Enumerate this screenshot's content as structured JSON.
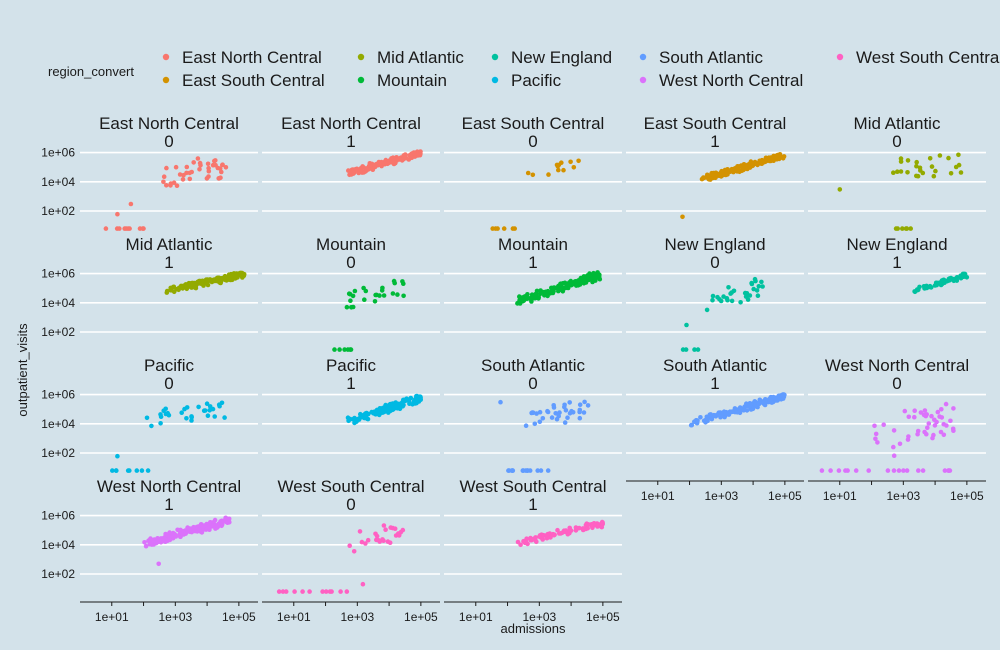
{
  "chart_data": {
    "type": "scatter",
    "facet_type": "wrap",
    "facet_columns": 5,
    "background": "#d3e2ea",
    "gridline_color": "#ffffff",
    "xlabel": "admissions",
    "ylabel": "outpatient_visits",
    "x_scale": "log10",
    "y_scale": "log10",
    "x_ticks": [
      "1e+01",
      "1e+03",
      "1e+05"
    ],
    "y_ticks": [
      "1e+02",
      "1e+04",
      "1e+06"
    ],
    "xlim": [
      1,
      400000
    ],
    "ylim": [
      5,
      1500000
    ],
    "legend": {
      "title": "region_convert",
      "position": "top",
      "items": [
        {
          "label": "East North Central",
          "color": "#F8766D"
        },
        {
          "label": "East South Central",
          "color": "#D39200"
        },
        {
          "label": "Mid Atlantic",
          "color": "#93AA00"
        },
        {
          "label": "Mountain",
          "color": "#00BA38"
        },
        {
          "label": "New England",
          "color": "#00C19F"
        },
        {
          "label": "Pacific",
          "color": "#00B9E3"
        },
        {
          "label": "South Atlantic",
          "color": "#619CFF"
        },
        {
          "label": "West North Central",
          "color": "#DB72FB"
        },
        {
          "label": "West South Central",
          "color": "#FF61C3"
        }
      ]
    },
    "panels": [
      {
        "region": "East North Central",
        "flag": "0",
        "x_axis_drawn": false,
        "n": 40,
        "x_range": [
          300,
          40000
        ],
        "y_range": [
          5000,
          500000
        ],
        "corr": 0.3,
        "floor_x_range": [
          5,
          100
        ],
        "floor_n": 10,
        "mid_points": [
          [
            40,
            300
          ],
          [
            15,
            60
          ]
        ]
      },
      {
        "region": "East North Central",
        "flag": "1",
        "x_axis_drawn": false,
        "n": 140,
        "x_range": [
          500,
          100000
        ],
        "y_range": [
          30000,
          1200000
        ],
        "corr": 0.85
      },
      {
        "region": "East South Central",
        "flag": "0",
        "x_axis_drawn": false,
        "n": 12,
        "x_range": [
          300,
          20000
        ],
        "y_range": [
          10000,
          400000
        ],
        "corr": 0.4,
        "floor_x_range": [
          30,
          200
        ],
        "floor_n": 6
      },
      {
        "region": "East South Central",
        "flag": "1",
        "x_axis_drawn": false,
        "n": 140,
        "x_range": [
          200,
          100000
        ],
        "y_range": [
          10000,
          900000
        ],
        "corr": 0.9,
        "mid_points": [
          [
            60,
            40
          ]
        ]
      },
      {
        "region": "Mid Atlantic",
        "flag": "0",
        "x_axis_drawn": false,
        "n": 25,
        "x_range": [
          200,
          100000
        ],
        "y_range": [
          10000,
          1000000
        ],
        "corr": 0.3,
        "floor_x_range": [
          400,
          2000
        ],
        "floor_n": 6,
        "mid_points": [
          [
            10,
            3000
          ]
        ]
      },
      {
        "region": "Mid Atlantic",
        "flag": "1",
        "x_axis_drawn": false,
        "n": 140,
        "x_range": [
          500,
          150000
        ],
        "y_range": [
          50000,
          1200000
        ],
        "corr": 0.8
      },
      {
        "region": "Mountain",
        "flag": "0",
        "x_axis_drawn": false,
        "n": 25,
        "x_range": [
          200,
          30000
        ],
        "y_range": [
          3000,
          500000
        ],
        "corr": 0.4,
        "floor_x_range": [
          100,
          1000
        ],
        "floor_n": 6
      },
      {
        "region": "Mountain",
        "flag": "1",
        "x_axis_drawn": false,
        "n": 140,
        "x_range": [
          200,
          80000
        ],
        "y_range": [
          8000,
          1200000
        ],
        "corr": 0.85
      },
      {
        "region": "New England",
        "flag": "0",
        "x_axis_drawn": false,
        "n": 30,
        "x_range": [
          300,
          20000
        ],
        "y_range": [
          3000,
          500000
        ],
        "corr": 0.4,
        "floor_x_range": [
          40,
          300
        ],
        "floor_n": 4,
        "mid_points": [
          [
            80,
            300
          ]
        ]
      },
      {
        "region": "New England",
        "flag": "1",
        "x_axis_drawn": false,
        "n": 60,
        "x_range": [
          2000,
          100000
        ],
        "y_range": [
          50000,
          1000000
        ],
        "corr": 0.85
      },
      {
        "region": "Pacific",
        "flag": "0",
        "x_axis_drawn": false,
        "n": 30,
        "x_range": [
          100,
          40000
        ],
        "y_range": [
          5000,
          300000
        ],
        "corr": 0.4,
        "floor_x_range": [
          5,
          200
        ],
        "floor_n": 8,
        "mid_points": [
          [
            15,
            60
          ]
        ]
      },
      {
        "region": "Pacific",
        "flag": "1",
        "x_axis_drawn": false,
        "n": 150,
        "x_range": [
          500,
          100000
        ],
        "y_range": [
          10000,
          800000
        ],
        "corr": 0.85
      },
      {
        "region": "South Atlantic",
        "flag": "0",
        "x_axis_drawn": false,
        "n": 35,
        "x_range": [
          300,
          40000
        ],
        "y_range": [
          5000,
          400000
        ],
        "corr": 0.4,
        "floor_x_range": [
          50,
          2000
        ],
        "floor_n": 14,
        "mid_points": [
          [
            60,
            300000
          ]
        ]
      },
      {
        "region": "South Atlantic",
        "flag": "1",
        "x_axis_drawn": true,
        "n": 150,
        "x_range": [
          100,
          100000
        ],
        "y_range": [
          8000,
          1000000
        ],
        "corr": 0.9
      },
      {
        "region": "West North Central",
        "flag": "0",
        "x_axis_drawn": true,
        "n": 45,
        "x_range": [
          100,
          40000
        ],
        "y_range": [
          50,
          600000
        ],
        "corr": 0.4,
        "floor_x_range": [
          2,
          30000
        ],
        "floor_n": 18
      },
      {
        "region": "West North Central",
        "flag": "1",
        "x_axis_drawn": true,
        "n": 150,
        "x_range": [
          100,
          50000
        ],
        "y_range": [
          8000,
          700000
        ],
        "corr": 0.8,
        "mid_points": [
          [
            300,
            500
          ]
        ]
      },
      {
        "region": "West South Central",
        "flag": "0",
        "x_axis_drawn": true,
        "n": 25,
        "x_range": [
          300,
          30000
        ],
        "y_range": [
          3000,
          400000
        ],
        "corr": 0.4,
        "floor_x_range": [
          3,
          500
        ],
        "floor_n": 12,
        "mid_points": [
          [
            1500,
            20
          ]
        ]
      },
      {
        "region": "West South Central",
        "flag": "1",
        "x_axis_drawn": true,
        "n": 80,
        "x_range": [
          200,
          100000
        ],
        "y_range": [
          10000,
          400000
        ],
        "corr": 0.85
      }
    ]
  }
}
